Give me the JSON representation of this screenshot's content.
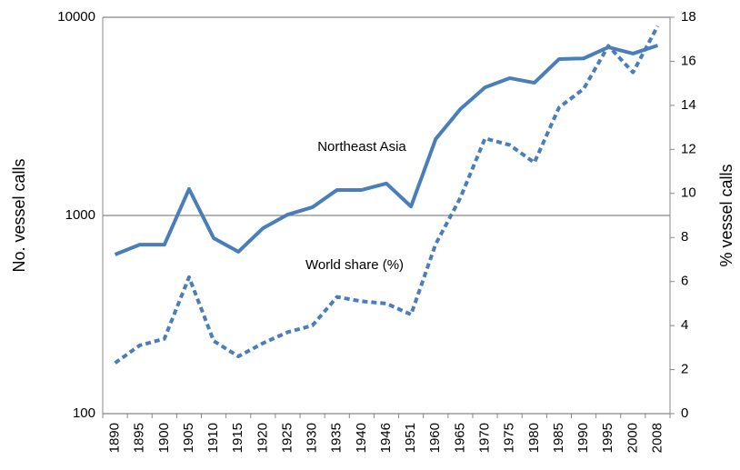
{
  "chart_data": {
    "type": "line",
    "categories": [
      "1890",
      "1895",
      "1900",
      "1905",
      "1910",
      "1915",
      "1920",
      "1925",
      "1930",
      "1935",
      "1940",
      "1946",
      "1951",
      "1960",
      "1965",
      "1970",
      "1975",
      "1980",
      "1985",
      "1990",
      "1995",
      "2000",
      "2008"
    ],
    "series": [
      {
        "name": "Northeast Asia",
        "color": "#4a7ebb",
        "line_style": "solid",
        "values": [
          635,
          712,
          712,
          1360,
          768,
          656,
          863,
          1010,
          1100,
          1345,
          1345,
          1450,
          1110,
          2430,
          3440,
          4430,
          4930,
          4670,
          6150,
          6200,
          7060,
          6560,
          7210
        ]
      },
      {
        "name": "World share (%)",
        "color": "#4a7ebb",
        "line_style": "dashed",
        "axis": "y2",
        "values": [
          2.3,
          3.1,
          3.4,
          6.2,
          3.3,
          2.6,
          3.2,
          3.7,
          4.0,
          5.3,
          5.1,
          5.0,
          4.5,
          7.7,
          9.8,
          12.5,
          12.2,
          11.4,
          13.9,
          14.75,
          16.7,
          15.5,
          17.6
        ]
      }
    ],
    "ylabel": "No. vessel calls",
    "y2label": "% vessel calls",
    "ylim": [
      100,
      10000
    ],
    "yticks": [
      100,
      1000,
      10000
    ],
    "ylog": true,
    "y2lim": [
      0,
      18
    ],
    "y2ticks": [
      0,
      2,
      4,
      6,
      8,
      10,
      12,
      14,
      16,
      18
    ],
    "grid": true
  }
}
